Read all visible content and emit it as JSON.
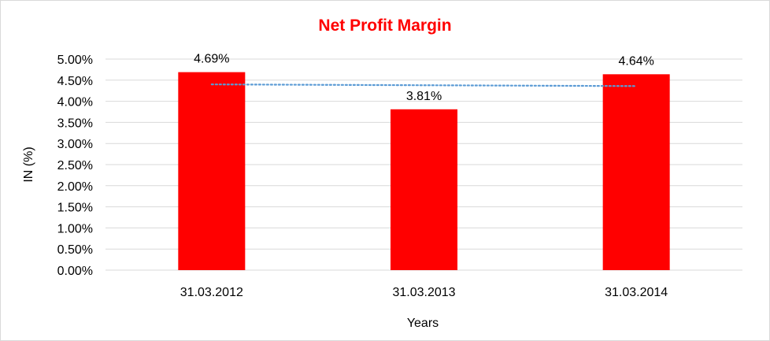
{
  "colors": {
    "title": "#ff0000",
    "bar": "#ff0000",
    "trendline": "#5b9bd5",
    "gridline": "#d9d9d9",
    "text": "#000000"
  },
  "chart_data": {
    "type": "bar",
    "title": "Net Profit Margin",
    "xlabel": "Years",
    "ylabel": "IN (%)",
    "categories": [
      "31.03.2012",
      "31.03.2013",
      "31.03.2014"
    ],
    "series": [
      {
        "values": [
          4.69,
          3.81,
          4.64
        ],
        "data_labels": [
          "4.69%",
          "3.81%",
          "4.64%"
        ]
      }
    ],
    "trendline": {
      "type": "linear",
      "style": "dotted",
      "start": 4.4,
      "end": 4.36
    },
    "ylim": [
      0,
      5
    ],
    "ytick_values": [
      0,
      0.5,
      1,
      1.5,
      2,
      2.5,
      3,
      3.5,
      4,
      4.5,
      5
    ],
    "ytick_labels": [
      "0.00%",
      "0.50%",
      "1.00%",
      "1.50%",
      "2.00%",
      "2.50%",
      "3.00%",
      "3.50%",
      "4.00%",
      "4.50%",
      "5.00%"
    ],
    "grid": true,
    "legend": "none"
  }
}
